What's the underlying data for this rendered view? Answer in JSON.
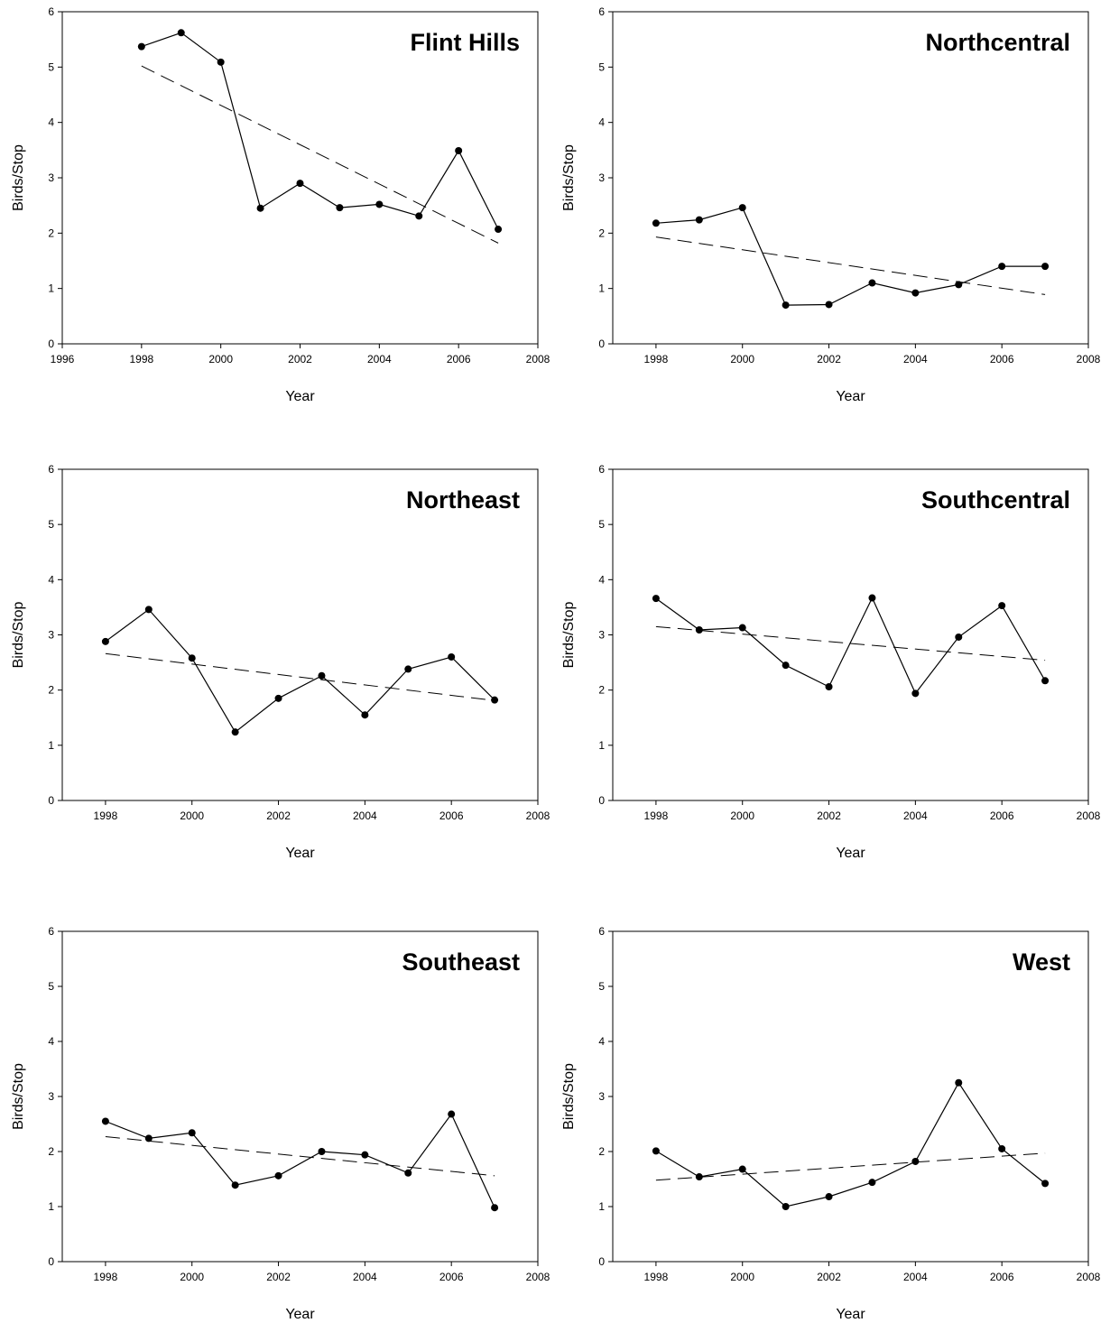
{
  "chart_data": [
    {
      "type": "line",
      "title": "Flint Hills",
      "xlabel": "Year",
      "ylabel": "Birds/Stop",
      "xlim": [
        1996,
        2008
      ],
      "ylim": [
        0,
        6
      ],
      "xticks": [
        "1996",
        "1998",
        "2000",
        "2002",
        "2004",
        "2006",
        "2008"
      ],
      "yticks": [
        "0",
        "1",
        "2",
        "3",
        "4",
        "5",
        "6"
      ],
      "x": [
        1998,
        1999,
        2000,
        2001,
        2002,
        2003,
        2004,
        2005,
        2006,
        2007
      ],
      "values": [
        5.37,
        5.62,
        5.09,
        2.45,
        2.9,
        2.46,
        2.52,
        2.31,
        3.49,
        2.07
      ],
      "trend": [
        [
          1998,
          5.02
        ],
        [
          2007,
          1.82
        ]
      ],
      "grid": false,
      "legend": "none"
    },
    {
      "type": "line",
      "title": "Northcentral",
      "xlabel": "Year",
      "ylabel": "Birds/Stop",
      "xlim": [
        1997,
        2008
      ],
      "ylim": [
        0,
        6
      ],
      "xticks": [
        "1998",
        "2000",
        "2002",
        "2004",
        "2006",
        "2008"
      ],
      "yticks": [
        "0",
        "1",
        "2",
        "3",
        "4",
        "5",
        "6"
      ],
      "x": [
        1998,
        1999,
        2000,
        2001,
        2002,
        2003,
        2004,
        2005,
        2006,
        2007
      ],
      "values": [
        2.18,
        2.24,
        2.46,
        0.7,
        0.71,
        1.1,
        0.92,
        1.07,
        1.4,
        1.4
      ],
      "trend": [
        [
          1998,
          1.93
        ],
        [
          2007,
          0.89
        ]
      ],
      "grid": false,
      "legend": "none"
    },
    {
      "type": "line",
      "title": "Northeast",
      "xlabel": "Year",
      "ylabel": "Birds/Stop",
      "xlim": [
        1997,
        2008
      ],
      "ylim": [
        0,
        6
      ],
      "xticks": [
        "1998",
        "2000",
        "2002",
        "2004",
        "2006",
        "2008"
      ],
      "yticks": [
        "0",
        "1",
        "2",
        "3",
        "4",
        "5",
        "6"
      ],
      "x": [
        1998,
        1999,
        2000,
        2001,
        2002,
        2003,
        2004,
        2005,
        2006,
        2007
      ],
      "values": [
        2.88,
        3.46,
        2.58,
        1.24,
        1.85,
        2.26,
        1.55,
        2.38,
        2.6,
        1.82
      ],
      "trend": [
        [
          1998,
          2.66
        ],
        [
          2007,
          1.81
        ]
      ],
      "grid": false,
      "legend": "none"
    },
    {
      "type": "line",
      "title": "Southcentral",
      "xlabel": "Year",
      "ylabel": "Birds/Stop",
      "xlim": [
        1997,
        2008
      ],
      "ylim": [
        0,
        6
      ],
      "xticks": [
        "1998",
        "2000",
        "2002",
        "2004",
        "2006",
        "2008"
      ],
      "yticks": [
        "0",
        "1",
        "2",
        "3",
        "4",
        "5",
        "6"
      ],
      "x": [
        1998,
        1999,
        2000,
        2001,
        2002,
        2003,
        2004,
        2005,
        2006,
        2007
      ],
      "values": [
        3.66,
        3.09,
        3.13,
        2.45,
        2.06,
        3.67,
        1.94,
        2.96,
        3.53,
        2.17
      ],
      "trend": [
        [
          1998,
          3.15
        ],
        [
          2007,
          2.54
        ]
      ],
      "grid": false,
      "legend": "none"
    },
    {
      "type": "line",
      "title": "Southeast",
      "xlabel": "Year",
      "ylabel": "Birds/Stop",
      "xlim": [
        1997,
        2008
      ],
      "ylim": [
        0,
        6
      ],
      "xticks": [
        "1998",
        "2000",
        "2002",
        "2004",
        "2006",
        "2008"
      ],
      "yticks": [
        "0",
        "1",
        "2",
        "3",
        "4",
        "5",
        "6"
      ],
      "x": [
        1998,
        1999,
        2000,
        2001,
        2002,
        2003,
        2004,
        2005,
        2006,
        2007
      ],
      "values": [
        2.55,
        2.24,
        2.34,
        1.39,
        1.56,
        2.0,
        1.94,
        1.61,
        2.68,
        0.98
      ],
      "trend": [
        [
          1998,
          2.27
        ],
        [
          2007,
          1.56
        ]
      ],
      "grid": false,
      "legend": "none"
    },
    {
      "type": "line",
      "title": "West",
      "xlabel": "Year",
      "ylabel": "Birds/Stop",
      "xlim": [
        1997,
        2008
      ],
      "ylim": [
        0,
        6
      ],
      "xticks": [
        "1998",
        "2000",
        "2002",
        "2004",
        "2006",
        "2008"
      ],
      "yticks": [
        "0",
        "1",
        "2",
        "3",
        "4",
        "5",
        "6"
      ],
      "x": [
        1998,
        1999,
        2000,
        2001,
        2002,
        2003,
        2004,
        2005,
        2006,
        2007
      ],
      "values": [
        2.01,
        1.54,
        1.68,
        1.0,
        1.18,
        1.44,
        1.82,
        3.25,
        2.05,
        1.42
      ],
      "trend": [
        [
          1998,
          1.48
        ],
        [
          2007,
          1.97
        ]
      ],
      "grid": false,
      "legend": "none"
    }
  ]
}
